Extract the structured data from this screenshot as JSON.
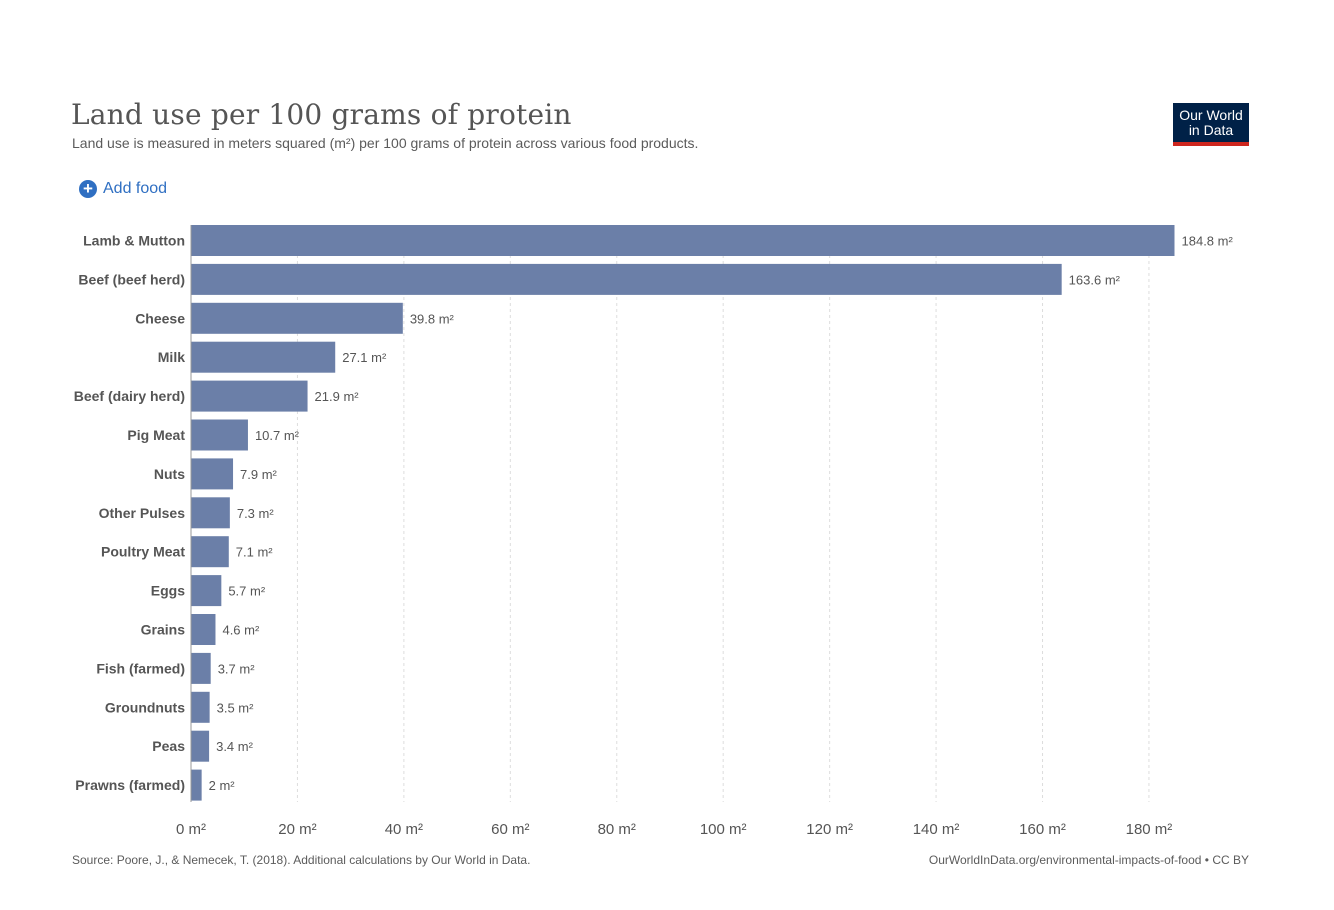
{
  "header": {
    "title": "Land use per 100 grams of protein",
    "subtitle": "Land use is measured in meters squared (m²) per 100 grams of protein across various food products.",
    "logo_line1": "Our World",
    "logo_line2": "in Data"
  },
  "controls": {
    "add_food_label": "Add food",
    "add_icon": "plus-circle-icon"
  },
  "footer": {
    "source": "Source: Poore, J., & Nemecek, T. (2018). Additional calculations by Our World in Data.",
    "credit": "OurWorldInData.org/environmental-impacts-of-food • CC BY"
  },
  "colors": {
    "bar": "#6b7fa8",
    "logo_bg": "#002147",
    "logo_accent": "#ce261e",
    "link": "#2f6fc2"
  },
  "chart_data": {
    "type": "bar",
    "orientation": "horizontal",
    "title": "Land use per 100 grams of protein",
    "unit": "m²",
    "categories": [
      "Lamb & Mutton",
      "Beef (beef herd)",
      "Cheese",
      "Milk",
      "Beef (dairy herd)",
      "Pig Meat",
      "Nuts",
      "Other Pulses",
      "Poultry Meat",
      "Eggs",
      "Grains",
      "Fish (farmed)",
      "Groundnuts",
      "Peas",
      "Prawns (farmed)"
    ],
    "values": [
      184.8,
      163.6,
      39.8,
      27.1,
      21.9,
      10.7,
      7.9,
      7.3,
      7.1,
      5.7,
      4.6,
      3.7,
      3.5,
      3.4,
      2
    ],
    "value_labels": [
      "184.8 m²",
      "163.6 m²",
      "39.8 m²",
      "27.1 m²",
      "21.9 m²",
      "10.7 m²",
      "7.9 m²",
      "7.3 m²",
      "7.1 m²",
      "5.7 m²",
      "4.6 m²",
      "3.7 m²",
      "3.5 m²",
      "3.4 m²",
      "2 m²"
    ],
    "xticks": [
      0,
      20,
      40,
      60,
      80,
      100,
      120,
      140,
      160,
      180
    ],
    "xtick_labels": [
      "0 m²",
      "20 m²",
      "40 m²",
      "60 m²",
      "80 m²",
      "100 m²",
      "120 m²",
      "140 m²",
      "160 m²",
      "180 m²"
    ],
    "xlim": [
      0,
      184.8
    ],
    "grid": true,
    "legend": false
  }
}
